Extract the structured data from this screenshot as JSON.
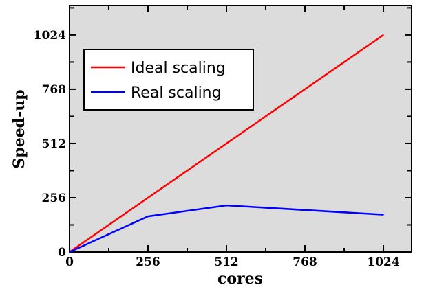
{
  "chart_data": {
    "type": "line",
    "title": "",
    "xlabel": "cores",
    "ylabel": "Speed-up",
    "xlim": [
      0,
      1116
    ],
    "ylim": [
      0,
      1163
    ],
    "xticks": [
      0,
      256,
      512,
      768,
      1024
    ],
    "yticks": [
      0,
      256,
      512,
      768,
      1024
    ],
    "minor_tick_step": 128,
    "grid": false,
    "legend_position": "top-left",
    "background": "#dcdcdc",
    "series": [
      {
        "name": "Ideal scaling",
        "color": "#ff0000",
        "x": [
          0,
          1024
        ],
        "y": [
          0,
          1024
        ]
      },
      {
        "name": "Real scaling",
        "color": "#0000ff",
        "x": [
          0,
          256,
          512,
          1024
        ],
        "y": [
          0,
          168,
          220,
          176
        ]
      }
    ]
  }
}
